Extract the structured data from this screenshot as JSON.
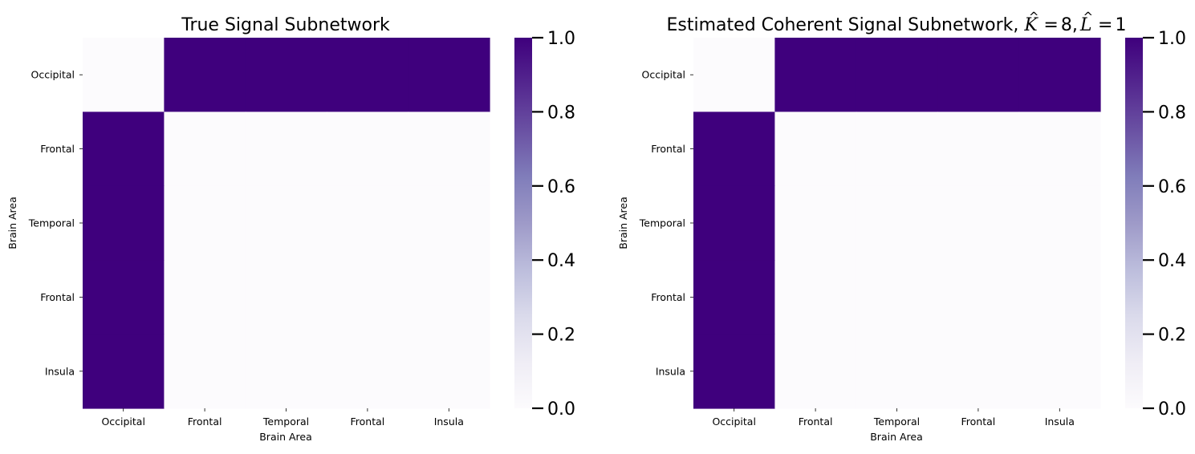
{
  "colormap": {
    "name": "Purples",
    "stops": [
      "#fcfbfd",
      "#efedf5",
      "#dadaeb",
      "#bcbddc",
      "#9e9ac8",
      "#807dba",
      "#6a51a3",
      "#54278f",
      "#3f007d"
    ]
  },
  "chart_data": [
    {
      "type": "heatmap",
      "title": "True Signal Subnetwork",
      "xlabel": "Brain Area",
      "ylabel": "Brain Area",
      "x_categories": [
        "Occipital",
        "Frontal",
        "Temporal",
        "Frontal",
        "Insula"
      ],
      "y_categories": [
        "Occipital",
        "Frontal",
        "Temporal",
        "Frontal",
        "Insula"
      ],
      "values": [
        [
          0,
          1,
          1,
          1,
          1
        ],
        [
          1,
          0,
          0,
          0,
          0
        ],
        [
          1,
          0,
          0,
          0,
          0
        ],
        [
          1,
          0,
          0,
          0,
          0
        ],
        [
          1,
          0,
          0,
          0,
          0
        ]
      ],
      "colorbar": {
        "range": [
          0,
          1
        ],
        "ticks": [
          0.0,
          0.2,
          0.4,
          0.6,
          0.8,
          1.0
        ],
        "tick_labels": [
          "0.0",
          "0.2",
          "0.4",
          "0.6",
          "0.8",
          "1.0"
        ]
      },
      "grid": false
    },
    {
      "type": "heatmap",
      "title": "Estimated Coherent Signal Subnetwork, ",
      "title_math": {
        "K_symbol": "K",
        "K_value": "8",
        "L_symbol": "L",
        "L_value": "1",
        "hat": "^",
        "eq": "=",
        "comma": ","
      },
      "xlabel": "Brain Area",
      "ylabel": "Brain Area",
      "x_categories": [
        "Occipital",
        "Frontal",
        "Temporal",
        "Frontal",
        "Insula"
      ],
      "y_categories": [
        "Occipital",
        "Frontal",
        "Temporal",
        "Frontal",
        "Insula"
      ],
      "values": [
        [
          0,
          1,
          1,
          1,
          1
        ],
        [
          1,
          0,
          0,
          0,
          0
        ],
        [
          1,
          0,
          0,
          0,
          0
        ],
        [
          1,
          0,
          0,
          0,
          0
        ],
        [
          1,
          0,
          0,
          0,
          0
        ]
      ],
      "colorbar": {
        "range": [
          0,
          1
        ],
        "ticks": [
          0.0,
          0.2,
          0.4,
          0.6,
          0.8,
          1.0
        ],
        "tick_labels": [
          "0.0",
          "0.2",
          "0.4",
          "0.6",
          "0.8",
          "1.0"
        ]
      },
      "grid": false
    }
  ]
}
